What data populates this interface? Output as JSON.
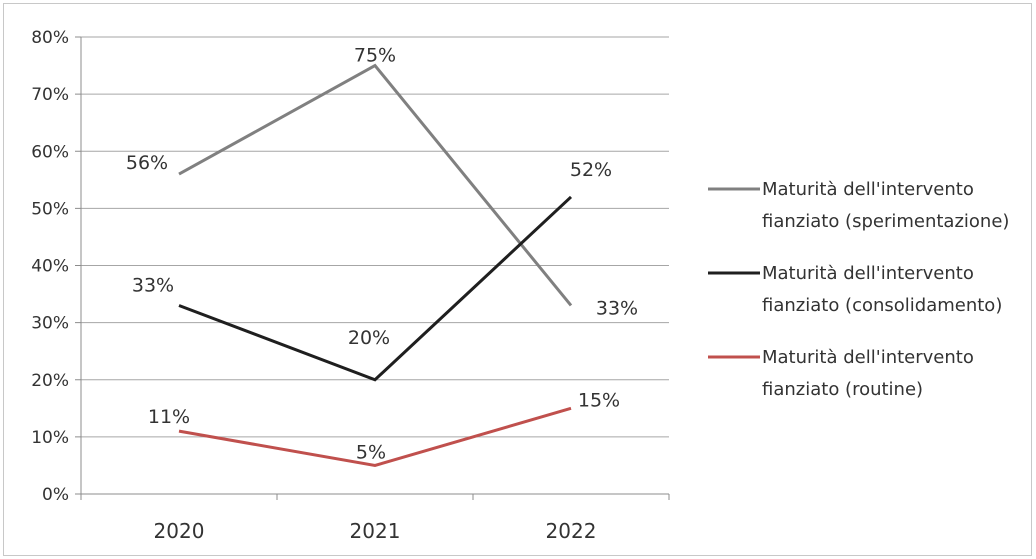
{
  "chart_data": {
    "type": "line",
    "categories": [
      "2020",
      "2021",
      "2022"
    ],
    "ylim": [
      0,
      80
    ],
    "yticks": [
      0,
      10,
      20,
      30,
      40,
      50,
      60,
      70,
      80
    ],
    "ytick_labels": [
      "0%",
      "10%",
      "20%",
      "30%",
      "40%",
      "50%",
      "60%",
      "70%",
      "80%"
    ],
    "grid": true,
    "legend_position": "right",
    "series": [
      {
        "name": "Maturità dell'intervento fianziato (sperimentazione)",
        "legend_lines": [
          "Maturità dell'intervento",
          "fianziato (sperimentazione)"
        ],
        "values": [
          56,
          75,
          33
        ],
        "labels": [
          "56%",
          "75%",
          "33%"
        ],
        "color": "#808080"
      },
      {
        "name": "Maturità dell'intervento fianziato (consolidamento)",
        "legend_lines": [
          "Maturità dell'intervento",
          "fianziato (consolidamento)"
        ],
        "values": [
          33,
          20,
          52
        ],
        "labels": [
          "33%",
          "20%",
          "52%"
        ],
        "color": "#1f1f1f"
      },
      {
        "name": "Maturità dell'intervento fianziato (routine)",
        "legend_lines": [
          "Maturità dell'intervento",
          "fianziato (routine)"
        ],
        "values": [
          11,
          5,
          15
        ],
        "labels": [
          "11%",
          "5%",
          "15%"
        ],
        "color": "#c0504d"
      }
    ]
  }
}
